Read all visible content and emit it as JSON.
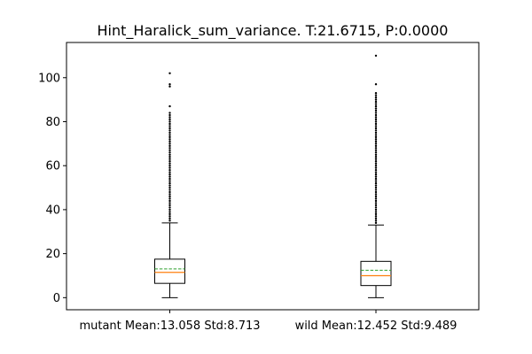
{
  "chart_data": {
    "type": "box",
    "title": "Hint_Haralick_sum_variance. T:21.6715, P:0.0000",
    "xlabel": "",
    "ylabel": "",
    "ylim": [
      -5.5,
      116
    ],
    "yticks": [
      0,
      20,
      40,
      60,
      80,
      100
    ],
    "grid": false,
    "categories": [
      "mutant Mean:13.058 Std:8.713",
      "wild Mean:12.452 Std:9.489"
    ],
    "boxes": [
      {
        "name": "mutant",
        "q1": 6.5,
        "median": 11.5,
        "mean": 13.058,
        "q3": 17.5,
        "whisker_low": 0,
        "whisker_high": 34,
        "outliers": [
          35,
          36,
          37,
          38,
          39,
          40,
          41,
          42,
          43,
          44,
          45,
          46,
          47,
          48,
          49,
          50,
          51,
          52,
          53,
          54,
          55,
          56,
          57,
          58,
          59,
          60,
          61,
          62,
          63,
          64,
          65,
          66,
          67,
          68,
          69,
          70,
          71,
          72,
          73,
          74,
          75,
          76,
          77,
          78,
          79,
          80,
          81,
          82,
          83,
          84,
          87,
          96,
          97,
          102
        ]
      },
      {
        "name": "wild",
        "q1": 5.5,
        "median": 10,
        "mean": 12.452,
        "q3": 16.5,
        "whisker_low": 0,
        "whisker_high": 33,
        "outliers": [
          34,
          35,
          36,
          37,
          38,
          39,
          40,
          41,
          42,
          43,
          44,
          45,
          46,
          47,
          48,
          49,
          50,
          51,
          52,
          53,
          54,
          55,
          56,
          57,
          58,
          59,
          60,
          61,
          62,
          63,
          64,
          65,
          66,
          67,
          68,
          69,
          70,
          71,
          72,
          73,
          74,
          75,
          76,
          77,
          78,
          79,
          80,
          81,
          82,
          83,
          84,
          85,
          86,
          87,
          88,
          89,
          90,
          91,
          92,
          93,
          97,
          110
        ]
      }
    ],
    "colors": {
      "box": "#000000",
      "median": "#ff7f0e",
      "mean": "#2ca02c",
      "outlier": "#000000"
    }
  }
}
